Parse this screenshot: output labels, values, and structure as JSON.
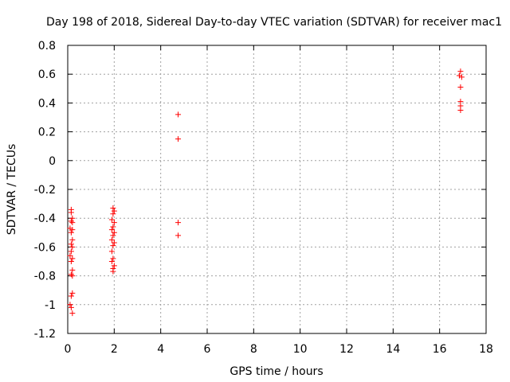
{
  "chart_data": {
    "type": "scatter",
    "title": "Day 198 of 2018, Sidereal Day-to-day VTEC variation (SDTVAR) for receiver mac1",
    "xlabel": "GPS time / hours",
    "ylabel": "SDTVAR / TECUs",
    "xlim": [
      0,
      18
    ],
    "ylim": [
      -1.2,
      0.8
    ],
    "xticks": [
      0,
      2,
      4,
      6,
      8,
      10,
      12,
      14,
      16,
      18
    ],
    "xtick_labels": [
      "0",
      "2",
      "4",
      "6",
      "8",
      "10",
      "12",
      "14",
      "16",
      "18"
    ],
    "yticks": [
      -1.2,
      -1,
      -0.8,
      -0.6,
      -0.4,
      -0.2,
      0,
      0.2,
      0.4,
      0.6,
      0.8
    ],
    "ytick_labels": [
      "-1.2",
      "-1",
      "-0.8",
      "-0.6",
      "-0.4",
      "-0.2",
      "0",
      "0.2",
      "0.4",
      "0.6",
      "0.8"
    ],
    "grid": true,
    "marker": "+",
    "marker_color": "#ff0000",
    "series": [
      {
        "name": "SDTVAR",
        "points": [
          [
            0.15,
            -0.34
          ],
          [
            0.15,
            -0.36
          ],
          [
            0.2,
            -0.4
          ],
          [
            0.15,
            -0.42
          ],
          [
            0.2,
            -0.43
          ],
          [
            0.1,
            -0.47
          ],
          [
            0.2,
            -0.48
          ],
          [
            0.15,
            -0.5
          ],
          [
            0.2,
            -0.55
          ],
          [
            0.15,
            -0.58
          ],
          [
            0.2,
            -0.6
          ],
          [
            0.15,
            -0.63
          ],
          [
            0.1,
            -0.66
          ],
          [
            0.2,
            -0.68
          ],
          [
            0.15,
            -0.7
          ],
          [
            0.2,
            -0.76
          ],
          [
            0.15,
            -0.79
          ],
          [
            0.2,
            -0.8
          ],
          [
            0.2,
            -0.92
          ],
          [
            0.15,
            -0.94
          ],
          [
            0.1,
            -1.0
          ],
          [
            0.15,
            -1.02
          ],
          [
            0.2,
            -1.06
          ],
          [
            1.95,
            -0.33
          ],
          [
            2.0,
            -0.35
          ],
          [
            1.95,
            -0.37
          ],
          [
            1.9,
            -0.41
          ],
          [
            2.0,
            -0.43
          ],
          [
            1.95,
            -0.46
          ],
          [
            1.9,
            -0.48
          ],
          [
            2.0,
            -0.5
          ],
          [
            1.95,
            -0.52
          ],
          [
            1.9,
            -0.55
          ],
          [
            2.0,
            -0.57
          ],
          [
            1.95,
            -0.59
          ],
          [
            1.9,
            -0.63
          ],
          [
            1.95,
            -0.68
          ],
          [
            1.9,
            -0.7
          ],
          [
            2.0,
            -0.73
          ],
          [
            1.95,
            -0.75
          ],
          [
            1.95,
            -0.77
          ],
          [
            4.75,
            0.32
          ],
          [
            4.75,
            0.15
          ],
          [
            4.75,
            -0.43
          ],
          [
            4.75,
            -0.52
          ],
          [
            16.9,
            0.62
          ],
          [
            16.85,
            0.59
          ],
          [
            16.95,
            0.58
          ],
          [
            16.9,
            0.51
          ],
          [
            16.9,
            0.41
          ],
          [
            16.9,
            0.38
          ],
          [
            16.9,
            0.35
          ]
        ]
      }
    ]
  }
}
